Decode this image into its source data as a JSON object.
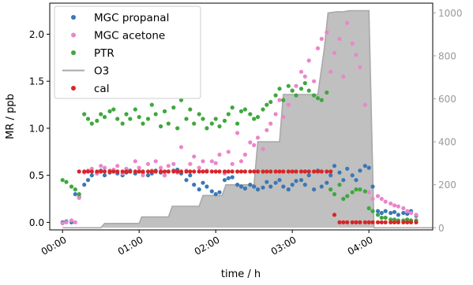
{
  "chart_data": {
    "type": "scatter",
    "title": "",
    "xlabel": "time / h",
    "ylabel": "MR / ppb",
    "xlim": [
      "23:50",
      "04:50"
    ],
    "ylim": [
      -0.08,
      2.33
    ],
    "y2lim": [
      -10,
      1045
    ],
    "x_ticks": [
      "00:00",
      "01:00",
      "02:00",
      "03:00",
      "04:00"
    ],
    "y_ticks": [
      0.0,
      0.5,
      1.0,
      1.5,
      2.0
    ],
    "y_tick_labels": [
      "0.0",
      "0.5",
      "1.0",
      "1.5",
      "2.0"
    ],
    "y2_ticks": [
      0,
      200,
      400,
      600,
      800,
      1000
    ],
    "y2_tick_labels": [
      "0",
      "200",
      "400",
      "600",
      "800",
      "1000"
    ],
    "grid": false,
    "legend_position": "top-left",
    "legend": [
      {
        "label": "MGC propanal",
        "color": "#3a78b5",
        "marker": "dot"
      },
      {
        "label": "MGC acetone",
        "color": "#ea86c8",
        "marker": "dot"
      },
      {
        "label": "PTR",
        "color": "#3fa73f",
        "marker": "dot"
      },
      {
        "label": "O3",
        "color": "#a9a9a9",
        "marker": "line"
      },
      {
        "label": "cal",
        "color": "#d62728",
        "marker": "dot"
      }
    ],
    "o3_series": {
      "name": "O3",
      "axis": "right",
      "fill_color": "#c0c0c0",
      "line_color": "#a9a9a9",
      "x": [
        "00:00",
        "00:30",
        "00:33",
        "01:00",
        "01:02",
        "01:23",
        "01:26",
        "01:47",
        "01:50",
        "02:05",
        "02:08",
        "02:30",
        "02:33",
        "02:50",
        "02:53",
        "03:20",
        "03:25",
        "03:28",
        "03:35",
        "03:40",
        "03:45",
        "03:50",
        "03:55",
        "04:00",
        "04:04",
        "04:50"
      ],
      "values": [
        0,
        0,
        20,
        20,
        50,
        50,
        100,
        100,
        150,
        150,
        200,
        200,
        400,
        400,
        620,
        620,
        830,
        1000,
        1005,
        1005,
        1010,
        1010,
        1010,
        1010,
        0,
        0
      ]
    },
    "series": [
      {
        "name": "MGC propanal",
        "color": "#3a78b5",
        "x": [
          "00:00",
          "00:03",
          "00:07",
          "00:10",
          "00:13",
          "00:17",
          "00:20",
          "00:23",
          "00:27",
          "00:30",
          "00:33",
          "00:37",
          "00:40",
          "00:43",
          "00:47",
          "00:50",
          "00:53",
          "00:57",
          "01:00",
          "01:03",
          "01:07",
          "01:10",
          "01:13",
          "01:17",
          "01:20",
          "01:23",
          "01:27",
          "01:30",
          "01:33",
          "01:37",
          "01:40",
          "01:43",
          "01:47",
          "01:50",
          "01:53",
          "01:57",
          "02:00",
          "02:03",
          "02:07",
          "02:10",
          "02:13",
          "02:17",
          "02:20",
          "02:23",
          "02:27",
          "02:30",
          "02:33",
          "02:37",
          "02:40",
          "02:43",
          "02:47",
          "02:50",
          "02:53",
          "02:57",
          "03:00",
          "03:03",
          "03:07",
          "03:10",
          "03:13",
          "03:17",
          "03:20",
          "03:23",
          "03:27",
          "03:30",
          "03:33",
          "03:37",
          "03:40",
          "03:43",
          "03:47",
          "03:50",
          "03:53",
          "03:57",
          "04:00",
          "04:03",
          "04:07",
          "04:10",
          "04:13",
          "04:17",
          "04:20",
          "04:23",
          "04:27",
          "04:30",
          "04:33",
          "04:37"
        ],
        "values": [
          0.0,
          0.01,
          0.0,
          0.3,
          0.27,
          0.4,
          0.45,
          0.5,
          0.52,
          0.55,
          0.5,
          0.53,
          0.55,
          0.52,
          0.5,
          0.53,
          0.55,
          0.52,
          0.54,
          0.53,
          0.5,
          0.52,
          0.55,
          0.53,
          0.5,
          0.54,
          0.55,
          0.56,
          0.52,
          0.45,
          0.5,
          0.4,
          0.35,
          0.42,
          0.38,
          0.33,
          0.3,
          0.32,
          0.45,
          0.47,
          0.48,
          0.4,
          0.38,
          0.36,
          0.4,
          0.38,
          0.35,
          0.37,
          0.43,
          0.38,
          0.42,
          0.45,
          0.38,
          0.35,
          0.4,
          0.44,
          0.45,
          0.4,
          0.5,
          0.35,
          0.55,
          0.38,
          0.42,
          0.5,
          0.6,
          0.53,
          0.45,
          0.57,
          0.5,
          0.45,
          0.55,
          0.6,
          0.58,
          0.38,
          0.12,
          0.1,
          0.12,
          0.1,
          0.11,
          0.08,
          0.1,
          0.09,
          0.12,
          0.07
        ]
      },
      {
        "name": "MGC acetone",
        "color": "#ea86c8",
        "x": [
          "00:00",
          "00:03",
          "00:07",
          "00:10",
          "00:13",
          "00:17",
          "00:20",
          "00:23",
          "00:27",
          "00:30",
          "00:33",
          "00:37",
          "00:40",
          "00:43",
          "00:47",
          "00:50",
          "00:53",
          "00:57",
          "01:00",
          "01:03",
          "01:07",
          "01:10",
          "01:13",
          "01:17",
          "01:20",
          "01:23",
          "01:27",
          "01:30",
          "01:33",
          "01:37",
          "01:40",
          "01:43",
          "01:47",
          "01:50",
          "01:53",
          "01:57",
          "02:00",
          "02:03",
          "02:07",
          "02:10",
          "02:13",
          "02:17",
          "02:20",
          "02:23",
          "02:27",
          "02:30",
          "02:33",
          "02:37",
          "02:40",
          "02:43",
          "02:47",
          "02:50",
          "02:53",
          "02:57",
          "03:00",
          "03:03",
          "03:07",
          "03:10",
          "03:13",
          "03:17",
          "03:20",
          "03:23",
          "03:27",
          "03:30",
          "03:33",
          "03:37",
          "03:40",
          "03:43",
          "03:47",
          "03:50",
          "03:53",
          "03:57",
          "04:00",
          "04:03",
          "04:07",
          "04:10",
          "04:13",
          "04:17",
          "04:20",
          "04:23",
          "04:27",
          "04:30",
          "04:33",
          "04:37"
        ],
        "values": [
          -0.01,
          0.0,
          0.02,
          0.0,
          0.26,
          0.53,
          0.55,
          0.57,
          0.52,
          0.6,
          0.58,
          0.55,
          0.56,
          0.6,
          0.52,
          0.57,
          0.54,
          0.65,
          0.58,
          0.5,
          0.62,
          0.55,
          0.65,
          0.58,
          0.5,
          0.6,
          0.62,
          0.53,
          0.8,
          0.55,
          0.62,
          0.7,
          0.58,
          0.65,
          0.55,
          0.65,
          0.63,
          0.72,
          0.52,
          0.75,
          0.62,
          0.95,
          0.65,
          0.72,
          0.85,
          0.82,
          0.9,
          0.78,
          0.98,
          1.05,
          1.15,
          1.3,
          1.12,
          1.25,
          1.4,
          1.45,
          1.6,
          1.55,
          1.72,
          1.5,
          1.85,
          1.95,
          2.02,
          1.6,
          1.8,
          1.95,
          1.55,
          2.12,
          1.9,
          1.78,
          1.65,
          1.25,
          0.32,
          0.25,
          0.28,
          0.25,
          0.22,
          0.2,
          0.18,
          0.17,
          0.15,
          0.12,
          0.1,
          0.08
        ]
      },
      {
        "name": "PTR",
        "color": "#3fa73f",
        "x": [
          "00:00",
          "00:03",
          "00:07",
          "00:10",
          "00:13",
          "00:17",
          "00:20",
          "00:23",
          "00:27",
          "00:30",
          "00:33",
          "00:37",
          "00:40",
          "00:43",
          "00:47",
          "00:50",
          "00:53",
          "00:57",
          "01:00",
          "01:03",
          "01:07",
          "01:10",
          "01:13",
          "01:17",
          "01:20",
          "01:23",
          "01:27",
          "01:30",
          "01:33",
          "01:37",
          "01:40",
          "01:43",
          "01:47",
          "01:50",
          "01:53",
          "01:57",
          "02:00",
          "02:03",
          "02:07",
          "02:10",
          "02:13",
          "02:17",
          "02:20",
          "02:23",
          "02:27",
          "02:30",
          "02:33",
          "02:37",
          "02:40",
          "02:43",
          "02:47",
          "02:50",
          "02:53",
          "02:57",
          "03:00",
          "03:03",
          "03:07",
          "03:10",
          "03:13",
          "03:17",
          "03:20",
          "03:23",
          "03:27",
          "03:30",
          "03:33",
          "03:37",
          "03:40",
          "03:43",
          "03:47",
          "03:50",
          "03:53",
          "03:57",
          "04:00",
          "04:03",
          "04:07",
          "04:10",
          "04:13",
          "04:17",
          "04:20",
          "04:23",
          "04:27",
          "04:30",
          "04:33",
          "04:37"
        ],
        "values": [
          0.45,
          0.43,
          0.38,
          0.35,
          0.3,
          1.15,
          1.1,
          1.05,
          1.08,
          1.15,
          1.12,
          1.18,
          1.2,
          1.1,
          1.05,
          1.15,
          1.1,
          1.2,
          1.12,
          1.05,
          1.1,
          1.25,
          1.15,
          1.02,
          1.18,
          1.05,
          1.22,
          1.0,
          1.3,
          1.1,
          1.2,
          1.05,
          1.15,
          1.1,
          1.0,
          1.05,
          1.1,
          1.02,
          1.08,
          1.15,
          1.22,
          1.05,
          1.18,
          1.2,
          1.15,
          1.1,
          1.12,
          1.2,
          1.25,
          1.28,
          1.35,
          1.42,
          1.3,
          1.45,
          1.4,
          1.35,
          1.42,
          1.48,
          1.4,
          1.35,
          1.32,
          1.3,
          1.38,
          0.35,
          0.3,
          0.4,
          0.25,
          0.28,
          0.32,
          0.35,
          0.35,
          0.33,
          0.15,
          0.12,
          0.08,
          0.05,
          0.05,
          0.03,
          0.03,
          0.02,
          0.02,
          0.03,
          0.02,
          0.02
        ]
      },
      {
        "name": "cal",
        "color": "#d62728",
        "x": [
          "00:13",
          "00:17",
          "00:20",
          "00:23",
          "00:27",
          "00:30",
          "00:33",
          "00:37",
          "00:40",
          "00:43",
          "00:47",
          "00:50",
          "00:53",
          "00:57",
          "01:00",
          "01:03",
          "01:07",
          "01:10",
          "01:13",
          "01:17",
          "01:20",
          "01:23",
          "01:27",
          "01:30",
          "01:33",
          "01:37",
          "01:40",
          "01:43",
          "01:47",
          "01:50",
          "01:53",
          "01:57",
          "02:00",
          "02:03",
          "02:07",
          "02:10",
          "02:13",
          "02:17",
          "02:20",
          "02:23",
          "02:27",
          "02:30",
          "02:33",
          "02:37",
          "02:40",
          "02:43",
          "02:47",
          "02:50",
          "02:53",
          "02:57",
          "03:00",
          "03:03",
          "03:07",
          "03:10",
          "03:13",
          "03:17",
          "03:20",
          "03:23",
          "03:27",
          "03:30",
          "03:33",
          "03:37",
          "03:40",
          "03:43",
          "03:47",
          "03:50",
          "03:53",
          "03:57",
          "04:00",
          "04:03",
          "04:07",
          "04:10",
          "04:13",
          "04:17",
          "04:20",
          "04:23",
          "04:27",
          "04:30",
          "04:33",
          "04:37"
        ],
        "values": [
          0.54,
          0.54,
          0.54,
          0.54,
          0.54,
          0.54,
          0.54,
          0.54,
          0.54,
          0.54,
          0.54,
          0.54,
          0.54,
          0.54,
          0.54,
          0.54,
          0.54,
          0.54,
          0.54,
          0.54,
          0.54,
          0.54,
          0.54,
          0.54,
          0.54,
          0.54,
          0.54,
          0.54,
          0.54,
          0.54,
          0.54,
          0.54,
          0.54,
          0.54,
          0.54,
          0.54,
          0.54,
          0.54,
          0.54,
          0.54,
          0.54,
          0.54,
          0.54,
          0.54,
          0.54,
          0.54,
          0.54,
          0.54,
          0.54,
          0.54,
          0.54,
          0.54,
          0.54,
          0.54,
          0.54,
          0.54,
          0.54,
          0.54,
          0.54,
          0.54,
          0.08,
          0.0,
          0.0,
          0.0,
          0.0,
          0.0,
          0.0,
          0.0,
          0.0,
          0.0,
          0.0,
          0.0,
          0.0,
          0.0,
          0.0,
          0.0,
          0.0,
          0.0,
          0.0,
          0.0
        ]
      }
    ]
  }
}
